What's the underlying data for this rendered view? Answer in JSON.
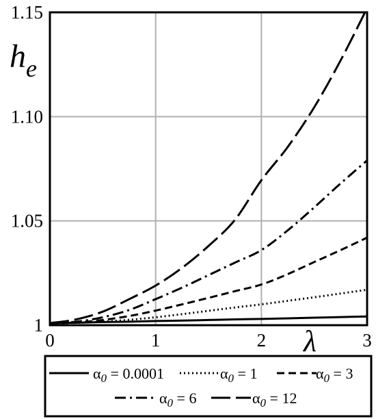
{
  "chart_data": {
    "type": "line",
    "xlabel": "λ",
    "ylabel": {
      "base": "h",
      "sub": "e"
    },
    "xlim": [
      0,
      3
    ],
    "ylim": [
      1,
      1.15
    ],
    "x_ticks": [
      0,
      1,
      2,
      3
    ],
    "x_tick_labels": [
      "0",
      "1",
      "2",
      "3"
    ],
    "y_ticks": [
      1,
      1.05,
      1.1,
      1.15
    ],
    "y_tick_labels": [
      "1",
      "1.05",
      "1.10",
      "1.15"
    ],
    "grid": true,
    "legend_placement": "bottom",
    "line_color": "#000000",
    "grid_color": "#b0b0b0",
    "x": [
      0,
      0.25,
      0.5,
      0.75,
      1,
      1.25,
      1.5,
      1.75,
      2,
      2.25,
      2.5,
      2.75,
      3
    ],
    "series": [
      {
        "name": {
          "symbol": "α",
          "sub": "0",
          "rest": " = 0.0001"
        },
        "dash": "solid",
        "values": [
          1.001,
          1.0012,
          1.0015,
          1.0017,
          1.002,
          1.0022,
          1.0025,
          1.0028,
          1.003,
          1.0033,
          1.0036,
          1.0039,
          1.0042
        ]
      },
      {
        "name": {
          "symbol": "α",
          "sub": "0",
          "rest": " = 1"
        },
        "dash": "dotted",
        "values": [
          1.001,
          1.0012,
          1.0017,
          1.0026,
          1.0038,
          1.0053,
          1.0069,
          1.0085,
          1.01,
          1.0117,
          1.0134,
          1.0152,
          1.017
        ]
      },
      {
        "name": {
          "symbol": "α",
          "sub": "0",
          "rest": " = 3"
        },
        "dash": "dashed",
        "values": [
          1.001,
          1.0013,
          1.0025,
          1.0044,
          1.007,
          1.01,
          1.0131,
          1.0163,
          1.0195,
          1.0245,
          1.0303,
          1.036,
          1.042
        ]
      },
      {
        "name": {
          "symbol": "α",
          "sub": "0",
          "rest": " = 6"
        },
        "dash": "dashdot",
        "values": [
          1.001,
          1.0017,
          1.0038,
          1.0073,
          1.0125,
          1.018,
          1.024,
          1.03,
          1.036,
          1.0455,
          1.0565,
          1.068,
          1.079
        ]
      },
      {
        "name": {
          "symbol": "α",
          "sub": "0",
          "rest": " = 12"
        },
        "dash": "longdash",
        "values": [
          1.001,
          1.0028,
          1.0065,
          1.0125,
          1.019,
          1.0275,
          1.038,
          1.0505,
          1.0695,
          1.0855,
          1.1045,
          1.127,
          1.152
        ]
      }
    ]
  }
}
